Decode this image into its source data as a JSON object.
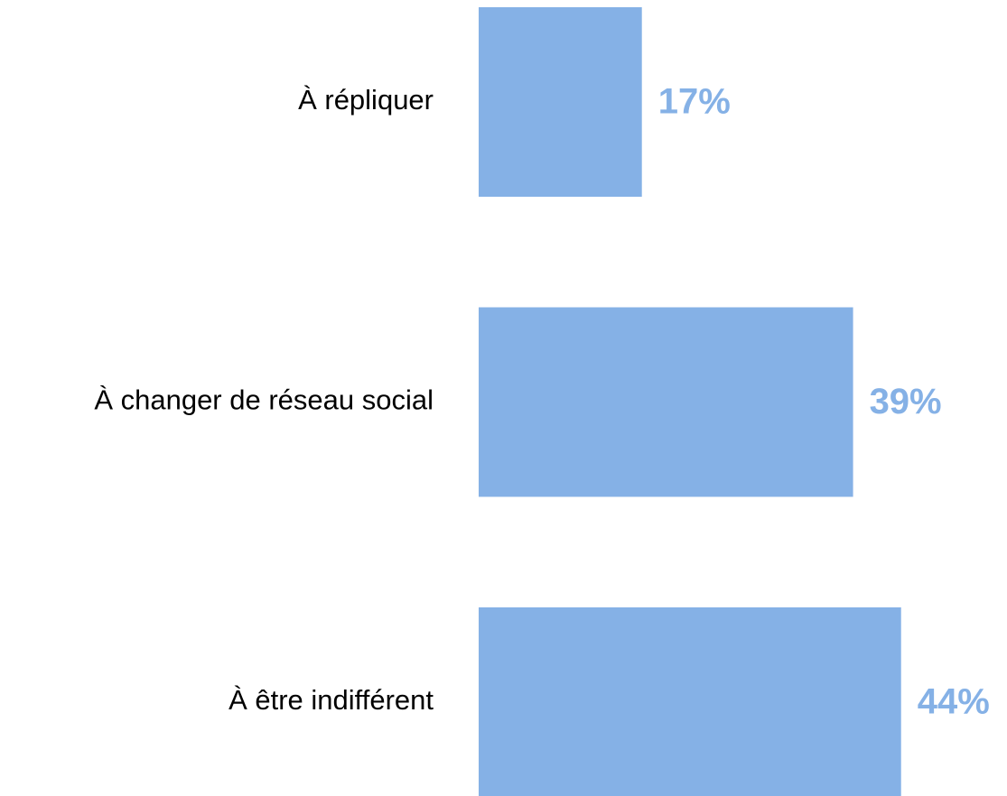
{
  "chart_data": {
    "type": "bar",
    "orientation": "horizontal",
    "categories": [
      "À répliquer",
      "À changer de réseau social",
      "À être indifférent"
    ],
    "values": [
      17,
      39,
      44
    ],
    "value_labels": [
      "17%",
      "39%",
      "44%"
    ],
    "color": "#85b1e6"
  }
}
